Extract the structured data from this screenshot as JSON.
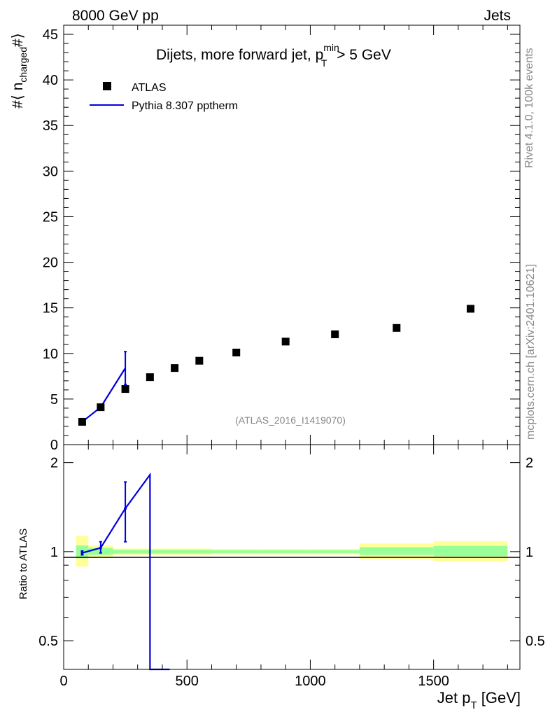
{
  "header": {
    "left": "8000 GeV pp",
    "right": "Jets"
  },
  "side": {
    "rivet": "Rivet 4.1.0,  100k events",
    "mcplots": "mcplots.cern.ch [arXiv:2401.10621]"
  },
  "colors": {
    "mc": "#0000dd",
    "data": "#000000",
    "band_inner": "#99ff99",
    "band_outer": "#ffff99"
  },
  "chart_data": [
    {
      "type": "scatter",
      "title_main": "Dijets, more forward jet, p",
      "title_sup": "min",
      "title_sub": "T",
      "title_tail": " > 5 GeV",
      "ylabel_prefix": "#⟨ n",
      "ylabel_sub": "charged",
      "ylabel_suffix": "#⟩",
      "ylim": [
        0,
        46
      ],
      "yticks": [
        0,
        5,
        10,
        15,
        20,
        25,
        30,
        35,
        40,
        45
      ],
      "xlim": [
        0,
        1850
      ],
      "watermark": "(ATLAS_2016_I1419070)",
      "legend": {
        "data_label": "ATLAS",
        "mc_label": "Pythia 8.307 pptherm",
        "position": "top-left"
      },
      "series": [
        {
          "name": "ATLAS",
          "x": [
            75,
            150,
            250,
            350,
            450,
            550,
            700,
            900,
            1100,
            1350,
            1650
          ],
          "y": [
            2.5,
            4.1,
            6.1,
            7.4,
            8.4,
            9.2,
            10.1,
            11.3,
            12.1,
            12.8,
            14.9
          ]
        },
        {
          "name": "Pythia 8.307 pptherm",
          "x": [
            75,
            150,
            250
          ],
          "y": [
            2.5,
            4.1,
            8.4
          ],
          "err": [
            0.1,
            0.3,
            1.8
          ]
        }
      ]
    },
    {
      "type": "line",
      "ylabel": "Ratio to ATLAS",
      "xlabel_main": "Jet p",
      "xlabel_sub": "T",
      "xlabel_tail": " [GeV]",
      "xlim": [
        0,
        1850
      ],
      "ylim_log": [
        0.4,
        2.3
      ],
      "yticks": [
        0.5,
        1,
        2
      ],
      "ytick_labels": [
        "0.5",
        "1",
        "2"
      ],
      "xticks": [
        0,
        500,
        1000,
        1500
      ],
      "xtick_labels": [
        "0",
        "500",
        "1000",
        "1500"
      ],
      "bands": [
        {
          "x0": 50,
          "x1": 100,
          "inner": [
            0.95,
            1.05
          ],
          "outer": [
            0.89,
            1.13
          ]
        },
        {
          "x0": 100,
          "x1": 200,
          "inner": [
            0.975,
            1.03
          ],
          "outer": [
            0.955,
            1.05
          ]
        },
        {
          "x0": 200,
          "x1": 300,
          "inner": [
            0.985,
            1.015
          ],
          "outer": [
            0.975,
            1.025
          ]
        },
        {
          "x0": 300,
          "x1": 400,
          "inner": [
            0.985,
            1.015
          ],
          "outer": [
            0.975,
            1.025
          ]
        },
        {
          "x0": 400,
          "x1": 500,
          "inner": [
            0.985,
            1.015
          ],
          "outer": [
            0.975,
            1.025
          ]
        },
        {
          "x0": 500,
          "x1": 600,
          "inner": [
            0.985,
            1.015
          ],
          "outer": [
            0.975,
            1.025
          ]
        },
        {
          "x0": 600,
          "x1": 800,
          "inner": [
            0.988,
            1.012
          ],
          "outer": [
            0.978,
            1.022
          ]
        },
        {
          "x0": 800,
          "x1": 1000,
          "inner": [
            0.988,
            1.012
          ],
          "outer": [
            0.978,
            1.022
          ]
        },
        {
          "x0": 1000,
          "x1": 1200,
          "inner": [
            0.988,
            1.012
          ],
          "outer": [
            0.978,
            1.022
          ]
        },
        {
          "x0": 1200,
          "x1": 1500,
          "inner": [
            0.975,
            1.035
          ],
          "outer": [
            0.945,
            1.065
          ]
        },
        {
          "x0": 1500,
          "x1": 1800,
          "inner": [
            0.965,
            1.045
          ],
          "outer": [
            0.93,
            1.085
          ]
        }
      ],
      "ratio_line": {
        "x": [
          75,
          150,
          250,
          350,
          350,
          430
        ],
        "y": [
          0.99,
          1.03,
          1.4,
          1.82,
          0.38,
          0.38
        ]
      },
      "ratio_errors": [
        {
          "x": 75,
          "y": 0.99,
          "lo": 0.975,
          "hi": 1.005
        },
        {
          "x": 150,
          "y": 1.03,
          "lo": 0.99,
          "hi": 1.08
        },
        {
          "x": 250,
          "y": 1.4,
          "lo": 1.08,
          "hi": 1.72
        }
      ]
    }
  ]
}
